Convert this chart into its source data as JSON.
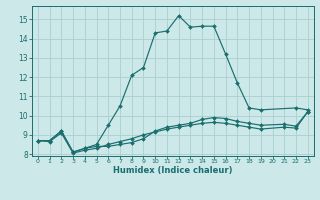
{
  "title": "",
  "xlabel": "Humidex (Indice chaleur)",
  "ylabel": "",
  "bg_color": "#cce8e8",
  "grid_color": "#aad0d0",
  "line_color": "#1a6e6e",
  "xlim": [
    -0.5,
    23.5
  ],
  "ylim": [
    7.9,
    15.7
  ],
  "yticks": [
    8,
    9,
    10,
    11,
    12,
    13,
    14,
    15
  ],
  "xticks": [
    0,
    1,
    2,
    3,
    4,
    5,
    6,
    7,
    8,
    9,
    10,
    11,
    12,
    13,
    14,
    15,
    16,
    17,
    18,
    19,
    20,
    21,
    22,
    23
  ],
  "series": [
    {
      "x": [
        0,
        1,
        2,
        3,
        4,
        5,
        6,
        7,
        8,
        9,
        10,
        11,
        12,
        13,
        14,
        15,
        16,
        17,
        18,
        19,
        22,
        23
      ],
      "y": [
        8.7,
        8.7,
        9.2,
        8.1,
        8.3,
        8.5,
        9.5,
        10.5,
        12.1,
        12.5,
        14.3,
        14.4,
        15.2,
        14.6,
        14.65,
        14.65,
        13.2,
        11.7,
        10.4,
        10.3,
        10.4,
        10.3
      ]
    },
    {
      "x": [
        0,
        1,
        2,
        3,
        4,
        5,
        6,
        7,
        8,
        9,
        10,
        11,
        12,
        13,
        14,
        15,
        16,
        17,
        18,
        19,
        21,
        22,
        23
      ],
      "y": [
        8.7,
        8.7,
        9.2,
        8.1,
        8.3,
        8.4,
        8.4,
        8.5,
        8.6,
        8.8,
        9.2,
        9.4,
        9.5,
        9.6,
        9.8,
        9.9,
        9.85,
        9.7,
        9.6,
        9.5,
        9.55,
        9.45,
        10.2
      ]
    },
    {
      "x": [
        0,
        1,
        2,
        3,
        4,
        5,
        6,
        7,
        8,
        9,
        10,
        11,
        12,
        13,
        14,
        15,
        16,
        17,
        18,
        19,
        21,
        22,
        23
      ],
      "y": [
        8.7,
        8.65,
        9.1,
        8.05,
        8.2,
        8.3,
        8.5,
        8.65,
        8.8,
        9.0,
        9.15,
        9.3,
        9.4,
        9.5,
        9.6,
        9.65,
        9.6,
        9.5,
        9.4,
        9.3,
        9.4,
        9.35,
        10.2
      ]
    }
  ]
}
